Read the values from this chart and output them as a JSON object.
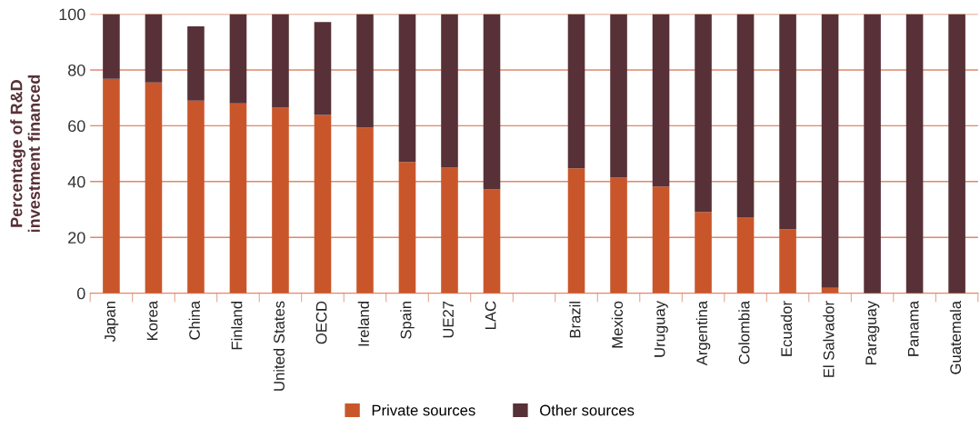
{
  "chart_data": {
    "type": "bar",
    "stacked": true,
    "ylabel": "Percentage of R&D\ninvestment financed",
    "categories": [
      "Japan",
      "Korea",
      "China",
      "Finland",
      "United States",
      "OECD",
      "Ireland",
      "Spain",
      "UE27",
      "LAC",
      null,
      "Brazil",
      "Mexico",
      "Uruguay",
      "Argentina",
      "Colombia",
      "Ecuador",
      "El Salvador",
      "Paraguay",
      "Panama",
      "Guatemala"
    ],
    "series": [
      {
        "name": "Private sources",
        "color": "#c9562a",
        "values": [
          76.8,
          75.5,
          69.0,
          68.0,
          66.5,
          63.9,
          59.3,
          47.0,
          45.0,
          37.2,
          null,
          44.7,
          41.4,
          38.2,
          29.1,
          27.2,
          22.9,
          1.9,
          0,
          0,
          0
        ]
      },
      {
        "name": "Other sources",
        "color": "#573137",
        "values": [
          23.2,
          24.5,
          26.6,
          32.0,
          33.5,
          33.3,
          40.7,
          53.0,
          55.0,
          62.8,
          null,
          55.3,
          58.6,
          61.8,
          70.9,
          72.8,
          77.1,
          98.1,
          100,
          100,
          100
        ]
      }
    ],
    "ylim": [
      0,
      100
    ],
    "yticks": [
      0,
      20,
      40,
      60,
      80,
      100
    ],
    "grid": "y",
    "legend": "bottom"
  }
}
